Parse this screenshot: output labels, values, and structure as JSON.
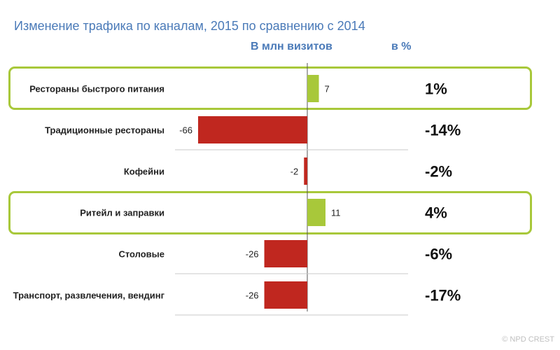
{
  "chart_data": {
    "type": "bar",
    "orientation": "horizontal",
    "title": "Изменение трафика по каналам, 2015 по сравнению с 2014",
    "value_header": "В млн визитов",
    "percent_header": "в %",
    "categories": [
      "Рестораны быстрого питания",
      "Традиционные рестораны",
      "Кофейни",
      "Ритейл и заправки",
      "Столовые",
      "Транспорт, развлечения, вендинг"
    ],
    "values": [
      7,
      -66,
      -2,
      11,
      -26,
      -26
    ],
    "percents": [
      "1%",
      "-14%",
      "-2%",
      "4%",
      "-6%",
      "-17%"
    ],
    "highlighted": [
      0,
      3
    ],
    "xlim": [
      -80,
      80
    ],
    "grid": false
  },
  "colors": {
    "positive": "#a8c83a",
    "negative": "#c0271f",
    "highlight": "#a8c83a",
    "title": "#4a7ab8"
  },
  "watermark": "© NPD CREST"
}
